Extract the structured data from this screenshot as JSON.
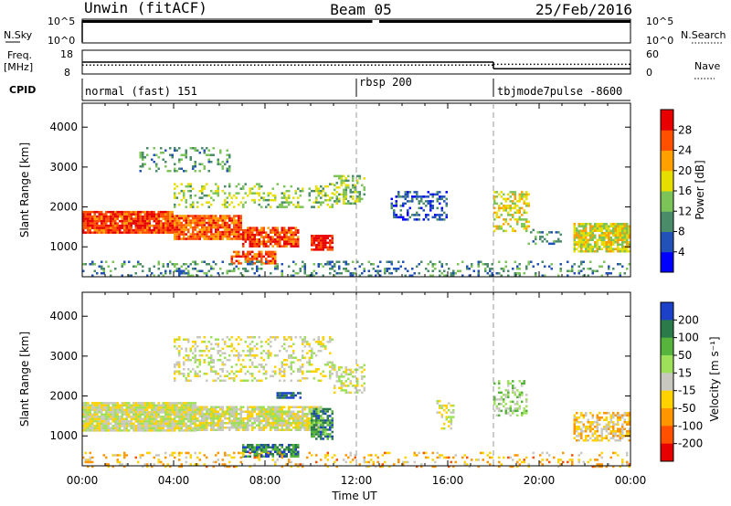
{
  "header": {
    "station": "Unwin (fitACF)",
    "beam": "Beam 05",
    "date": "25/Feb/2016"
  },
  "chart_data": [
    {
      "type": "line",
      "panel": "noise",
      "left_label": "N.Sky",
      "right_label": "N.Search",
      "left_ticks": [
        "10^5",
        "10^0"
      ],
      "right_ticks": [
        "10^5",
        "10^0"
      ],
      "gaps_hours": [
        [
          12.7,
          13.0
        ]
      ]
    },
    {
      "type": "line",
      "panel": "frequency",
      "left_label": "Freq.",
      "left_unit": "[MHz]",
      "right_label": "Nave",
      "left_ticks": [
        18,
        8
      ],
      "right_ticks": [
        60,
        0
      ],
      "freq_steps": [
        {
          "from": 0,
          "to": 18,
          "value": 13
        },
        {
          "from": 18,
          "to": 24,
          "value": 10
        }
      ],
      "nave_steps": [
        {
          "from": 0,
          "to": 18,
          "value": 22
        },
        {
          "from": 18,
          "to": 24,
          "value": 24
        }
      ]
    },
    {
      "type": "table",
      "panel": "cpid",
      "label": "CPID",
      "modes": [
        {
          "name": "normal (fast) 151",
          "start": 0
        },
        {
          "name": "rbsp 200",
          "start": 12
        },
        {
          "name": "tbjmode7pulse -8600",
          "start": 18
        }
      ]
    },
    {
      "type": "heatmap",
      "panel": "power",
      "ylabel": "Slant Range [km]",
      "ylim": [
        250,
        4600
      ],
      "yticks": [
        1000,
        2000,
        3000,
        4000
      ],
      "colorbar_label": "Power [dB]",
      "colorbar_ticks": [
        4,
        8,
        12,
        16,
        20,
        24,
        28
      ],
      "colorbar_colors": [
        "#0000ff",
        "#2251b8",
        "#4a8c6a",
        "#7cc457",
        "#e6de00",
        "#ffa000",
        "#ff5000",
        "#e80000"
      ],
      "regions": [
        {
          "t": [
            0.0,
            4.0
          ],
          "r": [
            1350,
            1900
          ],
          "level": 0.85,
          "density": 0.95
        },
        {
          "t": [
            4.0,
            7.0
          ],
          "r": [
            1200,
            1800
          ],
          "level": 0.8,
          "density": 0.9
        },
        {
          "t": [
            7.0,
            9.5
          ],
          "r": [
            1000,
            1500
          ],
          "level": 0.85,
          "density": 0.8
        },
        {
          "t": [
            6.5,
            8.5
          ],
          "r": [
            600,
            900
          ],
          "level": 0.8,
          "density": 0.7
        },
        {
          "t": [
            10.0,
            11.0
          ],
          "r": [
            900,
            1300
          ],
          "level": 0.9,
          "density": 0.8
        },
        {
          "t": [
            4.0,
            11.0
          ],
          "r": [
            2000,
            2600
          ],
          "level": 0.45,
          "density": 0.3
        },
        {
          "t": [
            2.5,
            6.5
          ],
          "r": [
            2900,
            3500
          ],
          "level": 0.35,
          "density": 0.25
        },
        {
          "t": [
            11.0,
            12.3
          ],
          "r": [
            2100,
            2800
          ],
          "level": 0.45,
          "density": 0.5
        },
        {
          "t": [
            13.5,
            16.0
          ],
          "r": [
            1700,
            2400
          ],
          "level": 0.2,
          "density": 0.35
        },
        {
          "t": [
            18.0,
            19.6
          ],
          "r": [
            1400,
            2400
          ],
          "level": 0.55,
          "density": 0.5
        },
        {
          "t": [
            19.5,
            21.0
          ],
          "r": [
            1100,
            1450
          ],
          "level": 0.3,
          "density": 0.3
        },
        {
          "t": [
            21.5,
            24.0
          ],
          "r": [
            900,
            1600
          ],
          "level": 0.55,
          "density": 0.85
        },
        {
          "t": [
            0.0,
            24.0
          ],
          "r": [
            250,
            650
          ],
          "level": 0.3,
          "density": 0.25
        }
      ]
    },
    {
      "type": "heatmap",
      "panel": "velocity",
      "xlabel": "Time UT",
      "ylabel": "Slant Range [km]",
      "ylim": [
        250,
        4600
      ],
      "yticks": [
        1000,
        2000,
        3000,
        4000
      ],
      "xticks": [
        "00:00",
        "04:00",
        "08:00",
        "12:00",
        "16:00",
        "20:00",
        "00:00"
      ],
      "colorbar_label": "Velocity [m s⁻¹]",
      "colorbar_ticks": [
        200,
        100,
        50,
        15,
        -15,
        -50,
        -100,
        -200
      ],
      "colorbar_colors": [
        "#1c40c8",
        "#2a7a4a",
        "#56b43c",
        "#9ee05a",
        "#c8c8c0",
        "#ffd200",
        "#ff9600",
        "#ff5000",
        "#e60000"
      ],
      "regions": [
        {
          "t": [
            0.0,
            5.0
          ],
          "r": [
            1150,
            1850
          ],
          "level": 0.5,
          "density": 0.95
        },
        {
          "t": [
            5.0,
            10.5
          ],
          "r": [
            1150,
            1750
          ],
          "level": 0.5,
          "density": 0.85
        },
        {
          "t": [
            10.0,
            11.0
          ],
          "r": [
            900,
            1700
          ],
          "level": 0.8,
          "density": 0.8
        },
        {
          "t": [
            7.0,
            9.5
          ],
          "r": [
            500,
            800
          ],
          "level": 0.82,
          "density": 0.8
        },
        {
          "t": [
            4.0,
            11.0
          ],
          "r": [
            2400,
            3500
          ],
          "level": 0.5,
          "density": 0.3
        },
        {
          "t": [
            8.5,
            9.6
          ],
          "r": [
            1950,
            2100
          ],
          "level": 0.95,
          "density": 0.7
        },
        {
          "t": [
            11.0,
            12.3
          ],
          "r": [
            2100,
            2800
          ],
          "level": 0.5,
          "density": 0.45
        },
        {
          "t": [
            15.5,
            16.3
          ],
          "r": [
            1200,
            1900
          ],
          "level": 0.5,
          "density": 0.4
        },
        {
          "t": [
            18.0,
            19.5
          ],
          "r": [
            1500,
            2400
          ],
          "level": 0.6,
          "density": 0.4
        },
        {
          "t": [
            21.5,
            24.0
          ],
          "r": [
            900,
            1600
          ],
          "level": 0.4,
          "density": 0.6
        },
        {
          "t": [
            0.0,
            24.0
          ],
          "r": [
            250,
            600
          ],
          "level": 0.35,
          "density": 0.2
        }
      ]
    }
  ]
}
